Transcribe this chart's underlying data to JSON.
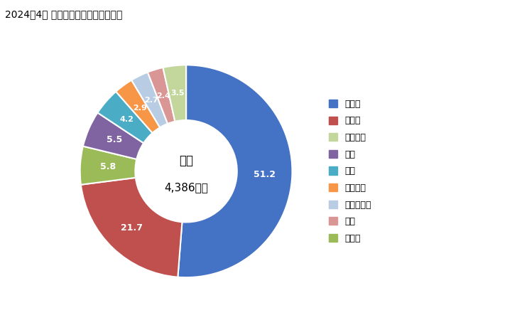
{
  "title": "2024年4月 輸入相手国のシェア（％）",
  "center_label_line1": "総額",
  "center_label_line2": "4,386万円",
  "slices": [
    {
      "label": "ドイツ",
      "value": 51.2,
      "color": "#4472C4"
    },
    {
      "label": "スイス",
      "value": 21.7,
      "color": "#C0504D"
    },
    {
      "label": "その他",
      "value": 5.8,
      "color": "#9BBB59"
    },
    {
      "label": "中国",
      "value": 5.5,
      "color": "#8064A2"
    },
    {
      "label": "米国",
      "value": 4.2,
      "color": "#4BACC6"
    },
    {
      "label": "ラトビア",
      "value": 2.9,
      "color": "#F79646"
    },
    {
      "label": "ポーランド",
      "value": 2.7,
      "color": "#B8CCE4"
    },
    {
      "label": "韓国",
      "value": 2.4,
      "color": "#DA9694"
    },
    {
      "label": "オランダ",
      "value": 3.5,
      "color": "#C3D69B"
    }
  ],
  "legend_order": [
    "ドイツ",
    "スイス",
    "オランダ",
    "中国",
    "米国",
    "ラトビア",
    "ポーランド",
    "韓国",
    "その他"
  ]
}
